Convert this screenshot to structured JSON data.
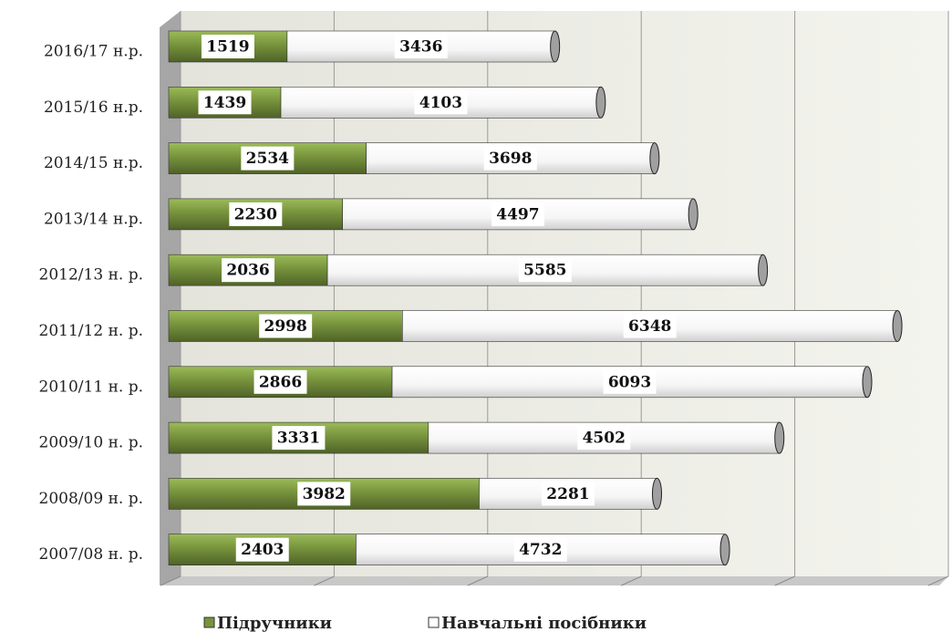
{
  "chart_data": {
    "type": "bar",
    "orientation": "horizontal",
    "stacked": true,
    "categories": [
      "2016/17 н.р.",
      "2015/16 н.р.",
      "2014/15 н.р.",
      "2013/14 н.р.",
      "2012/13 н. р.",
      "2011/12 н. р.",
      "2010/11 н. р.",
      "2009/10 н. р.",
      "2008/09 н. р.",
      "2007/08 н. р."
    ],
    "series": [
      {
        "name": "Підручники",
        "color": "#77933c",
        "values": [
          1519,
          1439,
          2534,
          2230,
          2036,
          2998,
          2866,
          3331,
          3982,
          2403
        ]
      },
      {
        "name": "Навчальні посібники",
        "color": "#ffffff",
        "values": [
          3436,
          4103,
          3698,
          4497,
          5585,
          6348,
          6093,
          4502,
          2281,
          4732
        ]
      }
    ],
    "xlim": [
      0,
      10000
    ],
    "xticks": [
      0,
      2000,
      4000,
      6000,
      8000,
      10000
    ],
    "grid": true,
    "legend": "bottom"
  }
}
